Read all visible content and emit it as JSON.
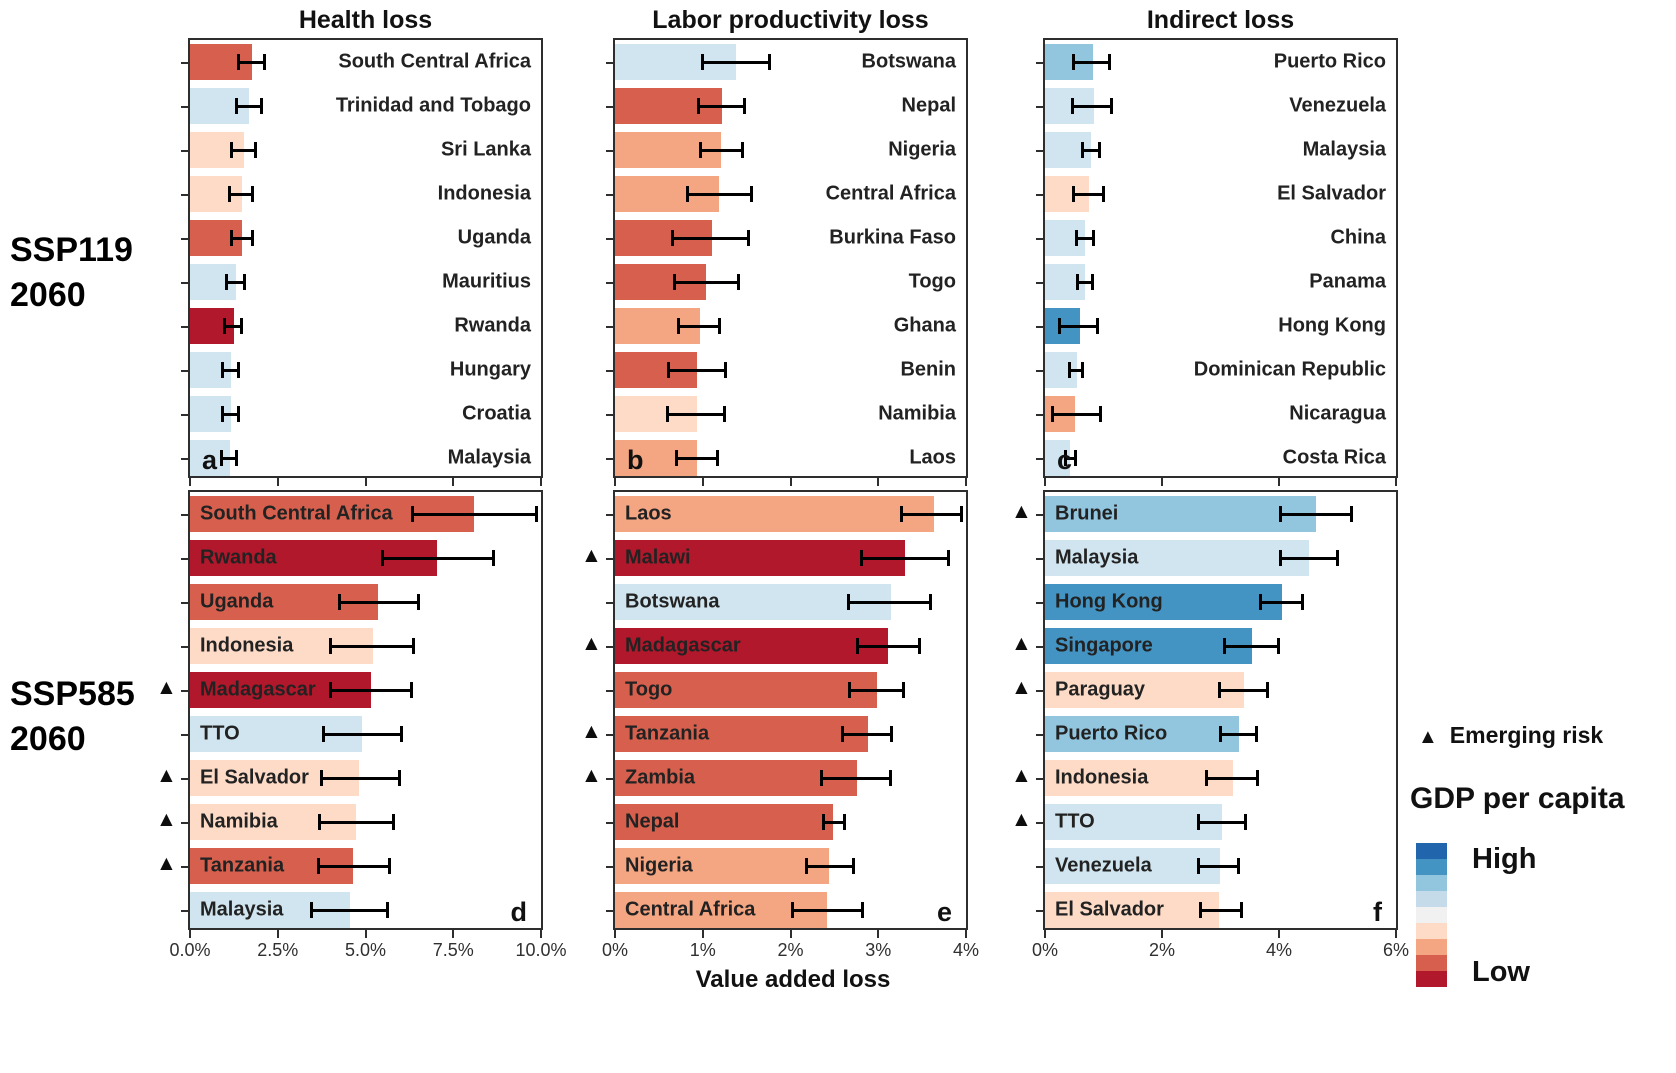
{
  "figure": {
    "column_titles": [
      "Health loss",
      "Labor productivity loss",
      "Indirect loss"
    ],
    "scenario_labels": [
      "SSP119\n2060",
      "SSP585\n2060"
    ],
    "x_axis_title": "Value added loss",
    "legend": {
      "emerging_risk_marker": "▲",
      "emerging_risk_label": "Emerging risk",
      "gdp_title": "GDP per capita",
      "high_label": "High",
      "low_label": "Low",
      "ramp_colors": [
        "#2166ac",
        "#4393c3",
        "#92c5de",
        "#c6dbea",
        "#f1f1f1",
        "#fddbc7",
        "#f4a582",
        "#d6604d",
        "#b2182b"
      ]
    }
  },
  "chart_data": [
    {
      "id": "a",
      "type": "bar",
      "orientation": "horizontal",
      "scenario": "SSP119 2060",
      "measure": "Health loss",
      "x_max": 10,
      "x_ticks": [
        0,
        2.5,
        5,
        7.5,
        10
      ],
      "x_tick_labels": null,
      "letter": "a",
      "letter_side": "left",
      "label_side": "right",
      "bars": [
        {
          "label": "South Central Africa",
          "value": 1.76,
          "err_low": 1.34,
          "err_high": 2.16,
          "color": "#d6604d",
          "emerging_risk": false
        },
        {
          "label": "Trinidad and Tobago",
          "value": 1.69,
          "err_low": 1.29,
          "err_high": 2.08,
          "color": "#d1e5f0",
          "emerging_risk": false
        },
        {
          "label": "Sri Lanka",
          "value": 1.55,
          "err_low": 1.15,
          "err_high": 1.91,
          "color": "#fddbc7",
          "emerging_risk": false
        },
        {
          "label": "Indonesia",
          "value": 1.48,
          "err_low": 1.08,
          "err_high": 1.83,
          "color": "#fddbc7",
          "emerging_risk": false
        },
        {
          "label": "Uganda",
          "value": 1.48,
          "err_low": 1.13,
          "err_high": 1.81,
          "color": "#d6604d",
          "emerging_risk": false
        },
        {
          "label": "Mauritius",
          "value": 1.32,
          "err_low": 0.99,
          "err_high": 1.6,
          "color": "#d1e5f0",
          "emerging_risk": false
        },
        {
          "label": "Rwanda",
          "value": 1.24,
          "err_low": 0.94,
          "err_high": 1.52,
          "color": "#b2182b",
          "emerging_risk": false
        },
        {
          "label": "Hungary",
          "value": 1.17,
          "err_low": 0.87,
          "err_high": 1.43,
          "color": "#d1e5f0",
          "emerging_risk": false
        },
        {
          "label": "Croatia",
          "value": 1.17,
          "err_low": 0.87,
          "err_high": 1.43,
          "color": "#d1e5f0",
          "emerging_risk": false
        },
        {
          "label": "Malaysia",
          "value": 1.15,
          "err_low": 0.85,
          "err_high": 1.38,
          "color": "#d1e5f0",
          "emerging_risk": false
        }
      ]
    },
    {
      "id": "b",
      "type": "bar",
      "orientation": "horizontal",
      "scenario": "SSP119 2060",
      "measure": "Labor productivity loss",
      "x_max": 4,
      "x_ticks": [
        0,
        1,
        2,
        3,
        4
      ],
      "x_tick_labels": null,
      "letter": "b",
      "letter_side": "left",
      "label_side": "right",
      "bars": [
        {
          "label": "Botswana",
          "value": 1.38,
          "err_low": 0.98,
          "err_high": 1.78,
          "color": "#d1e5f0",
          "emerging_risk": false
        },
        {
          "label": "Nepal",
          "value": 1.22,
          "err_low": 0.94,
          "err_high": 1.49,
          "color": "#d6604d",
          "emerging_risk": false
        },
        {
          "label": "Nigeria",
          "value": 1.21,
          "err_low": 0.96,
          "err_high": 1.47,
          "color": "#f4a582",
          "emerging_risk": false
        },
        {
          "label": "Central Africa",
          "value": 1.19,
          "err_low": 0.81,
          "err_high": 1.57,
          "color": "#f4a582",
          "emerging_risk": false
        },
        {
          "label": "Burkina Faso",
          "value": 1.1,
          "err_low": 0.64,
          "err_high": 1.54,
          "color": "#d6604d",
          "emerging_risk": false
        },
        {
          "label": "Togo",
          "value": 1.04,
          "err_low": 0.66,
          "err_high": 1.42,
          "color": "#d6604d",
          "emerging_risk": false
        },
        {
          "label": "Ghana",
          "value": 0.97,
          "err_low": 0.71,
          "err_high": 1.21,
          "color": "#f4a582",
          "emerging_risk": false
        },
        {
          "label": "Benin",
          "value": 0.93,
          "err_low": 0.59,
          "err_high": 1.28,
          "color": "#d6604d",
          "emerging_risk": false
        },
        {
          "label": "Namibia",
          "value": 0.93,
          "err_low": 0.58,
          "err_high": 1.27,
          "color": "#fddbc7",
          "emerging_risk": false
        },
        {
          "label": "Laos",
          "value": 0.94,
          "err_low": 0.68,
          "err_high": 1.19,
          "color": "#f4a582",
          "emerging_risk": false
        }
      ]
    },
    {
      "id": "c",
      "type": "bar",
      "orientation": "horizontal",
      "scenario": "SSP119 2060",
      "measure": "Indirect loss",
      "x_max": 6,
      "x_ticks": [
        0,
        2,
        4,
        6
      ],
      "x_tick_labels": null,
      "letter": "c",
      "letter_side": "left",
      "label_side": "right",
      "bars": [
        {
          "label": "Puerto Rico",
          "value": 0.82,
          "err_low": 0.47,
          "err_high": 1.12,
          "color": "#92c5de",
          "emerging_risk": false
        },
        {
          "label": "Venezuela",
          "value": 0.83,
          "err_low": 0.44,
          "err_high": 1.16,
          "color": "#d1e5f0",
          "emerging_risk": false
        },
        {
          "label": "Malaysia",
          "value": 0.79,
          "err_low": 0.61,
          "err_high": 0.96,
          "color": "#d1e5f0",
          "emerging_risk": false
        },
        {
          "label": "El Salvador",
          "value": 0.75,
          "err_low": 0.46,
          "err_high": 1.03,
          "color": "#fddbc7",
          "emerging_risk": false
        },
        {
          "label": "China",
          "value": 0.68,
          "err_low": 0.51,
          "err_high": 0.85,
          "color": "#d1e5f0",
          "emerging_risk": false
        },
        {
          "label": "Panama",
          "value": 0.69,
          "err_low": 0.53,
          "err_high": 0.83,
          "color": "#d1e5f0",
          "emerging_risk": false
        },
        {
          "label": "Hong Kong",
          "value": 0.6,
          "err_low": 0.23,
          "err_high": 0.93,
          "color": "#4393c3",
          "emerging_risk": false
        },
        {
          "label": "Dominican Republic",
          "value": 0.55,
          "err_low": 0.39,
          "err_high": 0.67,
          "color": "#d1e5f0",
          "emerging_risk": false
        },
        {
          "label": "Nicaragua",
          "value": 0.52,
          "err_low": 0.1,
          "err_high": 0.97,
          "color": "#f4a582",
          "emerging_risk": false
        },
        {
          "label": "Costa Rica",
          "value": 0.43,
          "err_low": 0.32,
          "err_high": 0.54,
          "color": "#d1e5f0",
          "emerging_risk": false
        }
      ]
    },
    {
      "id": "d",
      "type": "bar",
      "orientation": "horizontal",
      "scenario": "SSP585 2060",
      "measure": "Health loss",
      "x_max": 10,
      "x_ticks": [
        0,
        2.5,
        5,
        7.5,
        10
      ],
      "x_tick_labels": [
        "0.0%",
        "2.5%",
        "5.0%",
        "7.5%",
        "10.0%"
      ],
      "letter": "d",
      "letter_side": "right",
      "label_side": "left",
      "bars": [
        {
          "label": "South Central Africa",
          "value": 8.1,
          "err_low": 6.29,
          "err_high": 9.91,
          "color": "#d6604d",
          "emerging_risk": false
        },
        {
          "label": "Rwanda",
          "value": 7.04,
          "err_low": 5.43,
          "err_high": 8.69,
          "color": "#b2182b",
          "emerging_risk": false
        },
        {
          "label": "Uganda",
          "value": 5.35,
          "err_low": 4.21,
          "err_high": 6.55,
          "color": "#d6604d",
          "emerging_risk": false
        },
        {
          "label": "Indonesia",
          "value": 5.21,
          "err_low": 3.97,
          "err_high": 6.41,
          "color": "#fddbc7",
          "emerging_risk": false
        },
        {
          "label": "Madagascar",
          "value": 5.17,
          "err_low": 3.97,
          "err_high": 6.34,
          "color": "#b2182b",
          "emerging_risk": true
        },
        {
          "label": "TTO",
          "value": 4.9,
          "err_low": 3.77,
          "err_high": 6.08,
          "color": "#d1e5f0",
          "emerging_risk": false
        },
        {
          "label": "El Salvador",
          "value": 4.81,
          "err_low": 3.71,
          "err_high": 6.01,
          "color": "#fddbc7",
          "emerging_risk": true
        },
        {
          "label": "Namibia",
          "value": 4.74,
          "err_low": 3.66,
          "err_high": 5.85,
          "color": "#fddbc7",
          "emerging_risk": true
        },
        {
          "label": "Tanzania",
          "value": 4.65,
          "err_low": 3.62,
          "err_high": 5.73,
          "color": "#d6604d",
          "emerging_risk": true
        },
        {
          "label": "Malaysia",
          "value": 4.57,
          "err_low": 3.43,
          "err_high": 5.68,
          "color": "#d1e5f0",
          "emerging_risk": false
        }
      ]
    },
    {
      "id": "e",
      "type": "bar",
      "orientation": "horizontal",
      "scenario": "SSP585 2060",
      "measure": "Labor productivity loss",
      "x_max": 4,
      "x_ticks": [
        0,
        1,
        2,
        3,
        4
      ],
      "x_tick_labels": [
        "0%",
        "1%",
        "2%",
        "3%",
        "4%"
      ],
      "letter": "e",
      "letter_side": "right",
      "label_side": "left",
      "bars": [
        {
          "label": "Laos",
          "value": 3.63,
          "err_low": 3.25,
          "err_high": 3.97,
          "color": "#f4a582",
          "emerging_risk": false
        },
        {
          "label": "Malawi",
          "value": 3.31,
          "err_low": 2.79,
          "err_high": 3.82,
          "color": "#b2182b",
          "emerging_risk": true
        },
        {
          "label": "Botswana",
          "value": 3.14,
          "err_low": 2.64,
          "err_high": 3.61,
          "color": "#d1e5f0",
          "emerging_risk": false
        },
        {
          "label": "Madagascar",
          "value": 3.11,
          "err_low": 2.75,
          "err_high": 3.49,
          "color": "#b2182b",
          "emerging_risk": true
        },
        {
          "label": "Togo",
          "value": 2.99,
          "err_low": 2.66,
          "err_high": 3.31,
          "color": "#d6604d",
          "emerging_risk": false
        },
        {
          "label": "Tanzania",
          "value": 2.88,
          "err_low": 2.58,
          "err_high": 3.17,
          "color": "#d6604d",
          "emerging_risk": true
        },
        {
          "label": "Zambia",
          "value": 2.76,
          "err_low": 2.34,
          "err_high": 3.16,
          "color": "#d6604d",
          "emerging_risk": true
        },
        {
          "label": "Nepal",
          "value": 2.49,
          "err_low": 2.36,
          "err_high": 2.63,
          "color": "#d6604d",
          "emerging_risk": false
        },
        {
          "label": "Nigeria",
          "value": 2.44,
          "err_low": 2.16,
          "err_high": 2.73,
          "color": "#f4a582",
          "emerging_risk": false
        },
        {
          "label": "Central Africa",
          "value": 2.42,
          "err_low": 2.01,
          "err_high": 2.84,
          "color": "#f4a582",
          "emerging_risk": false
        }
      ]
    },
    {
      "id": "f",
      "type": "bar",
      "orientation": "horizontal",
      "scenario": "SSP585 2060",
      "measure": "Indirect loss",
      "x_max": 6,
      "x_ticks": [
        0,
        2,
        4,
        6
      ],
      "x_tick_labels": [
        "0%",
        "2%",
        "4%",
        "6%"
      ],
      "letter": "f",
      "letter_side": "right",
      "label_side": "left",
      "bars": [
        {
          "label": "Brunei",
          "value": 4.64,
          "err_low": 4.0,
          "err_high": 5.26,
          "color": "#92c5de",
          "emerging_risk": true
        },
        {
          "label": "Malaysia",
          "value": 4.52,
          "err_low": 4.0,
          "err_high": 5.03,
          "color": "#d1e5f0",
          "emerging_risk": false
        },
        {
          "label": "Hong Kong",
          "value": 4.05,
          "err_low": 3.66,
          "err_high": 4.43,
          "color": "#4393c3",
          "emerging_risk": false
        },
        {
          "label": "Singapore",
          "value": 3.53,
          "err_low": 3.05,
          "err_high": 4.02,
          "color": "#4393c3",
          "emerging_risk": true
        },
        {
          "label": "Paraguay",
          "value": 3.4,
          "err_low": 2.95,
          "err_high": 3.83,
          "color": "#fddbc7",
          "emerging_risk": true
        },
        {
          "label": "Puerto Rico",
          "value": 3.31,
          "err_low": 2.97,
          "err_high": 3.64,
          "color": "#92c5de",
          "emerging_risk": false
        },
        {
          "label": "Indonesia",
          "value": 3.21,
          "err_low": 2.74,
          "err_high": 3.66,
          "color": "#fddbc7",
          "emerging_risk": true
        },
        {
          "label": "TTO",
          "value": 3.02,
          "err_low": 2.6,
          "err_high": 3.46,
          "color": "#d1e5f0",
          "emerging_risk": true
        },
        {
          "label": "Venezuela",
          "value": 2.99,
          "err_low": 2.6,
          "err_high": 3.34,
          "color": "#d1e5f0",
          "emerging_risk": false
        },
        {
          "label": "El Salvador",
          "value": 2.97,
          "err_low": 2.63,
          "err_high": 3.38,
          "color": "#fddbc7",
          "emerging_risk": false
        }
      ]
    }
  ]
}
